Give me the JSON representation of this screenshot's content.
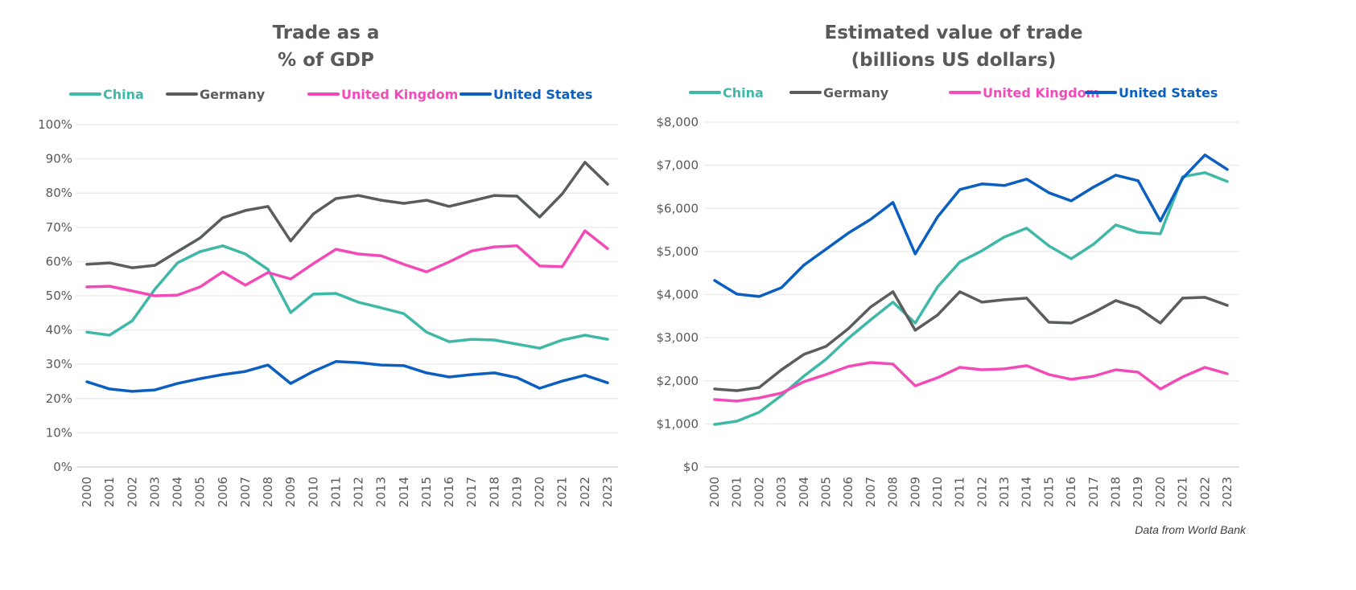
{
  "source_note": "Data from World Bank",
  "chart_data": [
    {
      "type": "line",
      "title": [
        "Trade as a",
        "% of GDP"
      ],
      "xlabel": "",
      "ylabel": "",
      "x": [
        "2000",
        "2001",
        "2002",
        "2003",
        "2004",
        "2005",
        "2006",
        "2007",
        "2008",
        "2009",
        "2010",
        "2011",
        "2012",
        "2013",
        "2014",
        "2015",
        "2016",
        "2017",
        "2018",
        "2019",
        "2020",
        "2021",
        "2022",
        "2023"
      ],
      "ylim": [
        0,
        100
      ],
      "yticks": [
        0,
        10,
        20,
        30,
        40,
        50,
        60,
        70,
        80,
        90,
        100
      ],
      "ytick_labels": [
        "0%",
        "10%",
        "20%",
        "30%",
        "40%",
        "50%",
        "60%",
        "70%",
        "80%",
        "90%",
        "100%"
      ],
      "grid": true,
      "legend_placement": "top",
      "series": [
        {
          "name": "China",
          "color": "#40b8a8",
          "values": [
            39.4,
            38.5,
            42.7,
            51.9,
            59.6,
            62.9,
            64.6,
            62.2,
            57.7,
            45.1,
            50.5,
            50.7,
            48.1,
            46.5,
            44.8,
            39.4,
            36.6,
            37.3,
            37.1,
            35.9,
            34.7,
            37.1,
            38.5,
            37.3
          ]
        },
        {
          "name": "Germany",
          "color": "#595d5b",
          "values": [
            59.2,
            59.6,
            58.2,
            58.9,
            62.9,
            66.9,
            72.8,
            74.9,
            76.1,
            66.0,
            73.9,
            78.4,
            79.3,
            77.9,
            77.0,
            77.9,
            76.1,
            77.7,
            79.3,
            79.1,
            73.0,
            79.8,
            89.0,
            82.6
          ]
        },
        {
          "name": "United Kingdom",
          "color": "#f24bb8",
          "values": [
            52.6,
            52.8,
            51.4,
            50.0,
            50.2,
            52.6,
            57.0,
            53.1,
            56.8,
            54.9,
            59.4,
            63.6,
            62.2,
            61.7,
            59.2,
            57.0,
            59.9,
            63.1,
            64.3,
            64.6,
            58.7,
            58.5,
            69.0,
            63.8
          ]
        },
        {
          "name": "United States",
          "color": "#0b5fc0",
          "values": [
            24.9,
            22.8,
            22.1,
            22.5,
            24.4,
            25.8,
            27.0,
            27.9,
            29.8,
            24.4,
            27.9,
            30.8,
            30.5,
            29.8,
            29.6,
            27.5,
            26.3,
            27.0,
            27.5,
            26.1,
            23.0,
            25.1,
            26.8,
            24.6
          ]
        }
      ]
    },
    {
      "type": "line",
      "title": [
        "Estimated value of trade",
        "(billions US dollars)"
      ],
      "xlabel": "",
      "ylabel": "",
      "x": [
        "2000",
        "2001",
        "2002",
        "2003",
        "2004",
        "2005",
        "2006",
        "2007",
        "2008",
        "2009",
        "2010",
        "2011",
        "2012",
        "2013",
        "2014",
        "2015",
        "2016",
        "2017",
        "2018",
        "2019",
        "2020",
        "2021",
        "2022",
        "2023"
      ],
      "ylim": [
        0,
        8000
      ],
      "yticks": [
        0,
        1000,
        2000,
        3000,
        4000,
        5000,
        6000,
        7000,
        8000
      ],
      "ytick_labels": [
        "$0",
        "$1,000",
        "$2,000",
        "$3,000",
        "$4,000",
        "$5,000",
        "$6,000",
        "$7,000",
        "$8,000"
      ],
      "grid": true,
      "legend_placement": "top",
      "series": [
        {
          "name": "China",
          "color": "#40b8a8",
          "values": [
            989,
            1063,
            1269,
            1660,
            2108,
            2500,
            2985,
            3414,
            3825,
            3340,
            4179,
            4757,
            5019,
            5336,
            5541,
            5131,
            4832,
            5168,
            5616,
            5448,
            5410,
            6735,
            6828,
            6623
          ]
        },
        {
          "name": "Germany",
          "color": "#595d5b",
          "values": [
            1810,
            1772,
            1847,
            2257,
            2612,
            2799,
            3209,
            3713,
            4067,
            3172,
            3526,
            4067,
            3825,
            3881,
            3918,
            3358,
            3340,
            3582,
            3862,
            3694,
            3340,
            3918,
            3937,
            3750
          ]
        },
        {
          "name": "United Kingdom",
          "color": "#f24bb8",
          "values": [
            1567,
            1530,
            1604,
            1716,
            1978,
            2146,
            2332,
            2425,
            2388,
            1884,
            2071,
            2313,
            2257,
            2276,
            2351,
            2146,
            2034,
            2108,
            2257,
            2201,
            1810,
            2090,
            2313,
            2164
          ]
        },
        {
          "name": "United States",
          "color": "#0b5fc0",
          "values": [
            4328,
            4011,
            3955,
            4160,
            4683,
            5056,
            5429,
            5746,
            6138,
            4944,
            5802,
            6437,
            6567,
            6530,
            6679,
            6362,
            6175,
            6493,
            6772,
            6642,
            5709,
            6698,
            7239,
            6903
          ]
        }
      ]
    }
  ]
}
